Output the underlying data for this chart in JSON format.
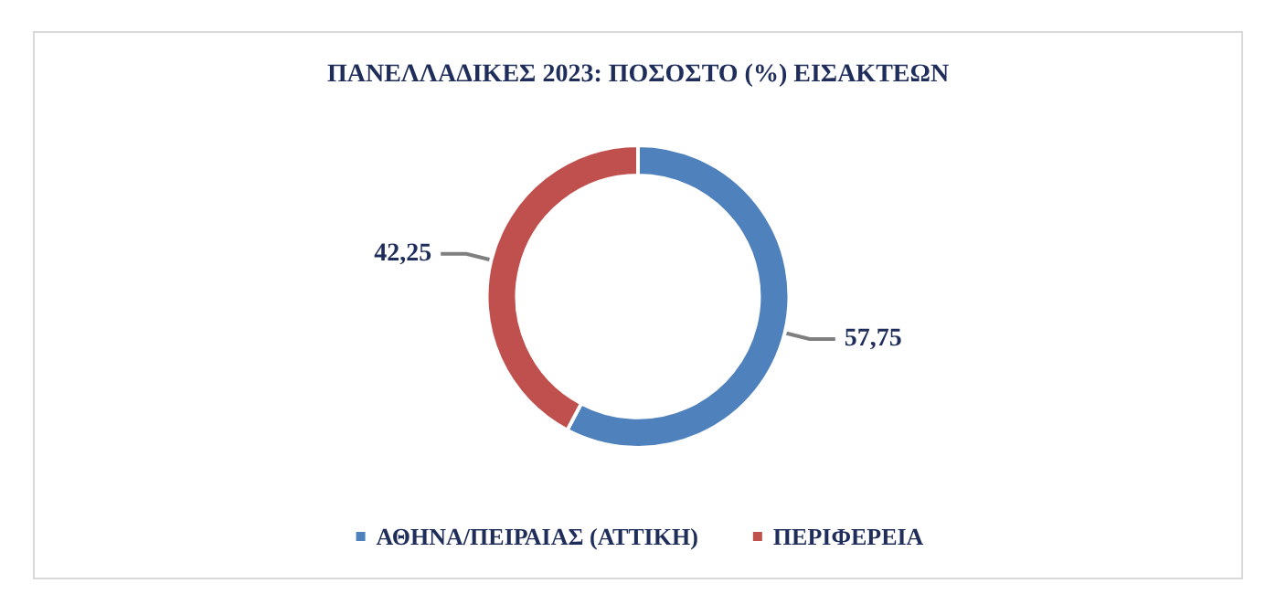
{
  "chart_data": {
    "type": "donut",
    "title": "ΠΑΝΕΛΛΑΔΙΚΕΣ 2023: ΠΟΣΟΣΤΟ (%) ΕΙΣΑΚΤΕΩΝ",
    "categories": [
      "ΑΘΗΝΑ/ΠΕΙΡΑΙΑΣ (ΑΤΤΙΚΗ)",
      "ΠΕΡΙΦΕΡΕΙΑ"
    ],
    "values": [
      57.75,
      42.25
    ],
    "colors": [
      "#4f81bd",
      "#c0504d"
    ],
    "value_labels": [
      "57,75",
      "42,25"
    ],
    "legend": "bottom"
  }
}
